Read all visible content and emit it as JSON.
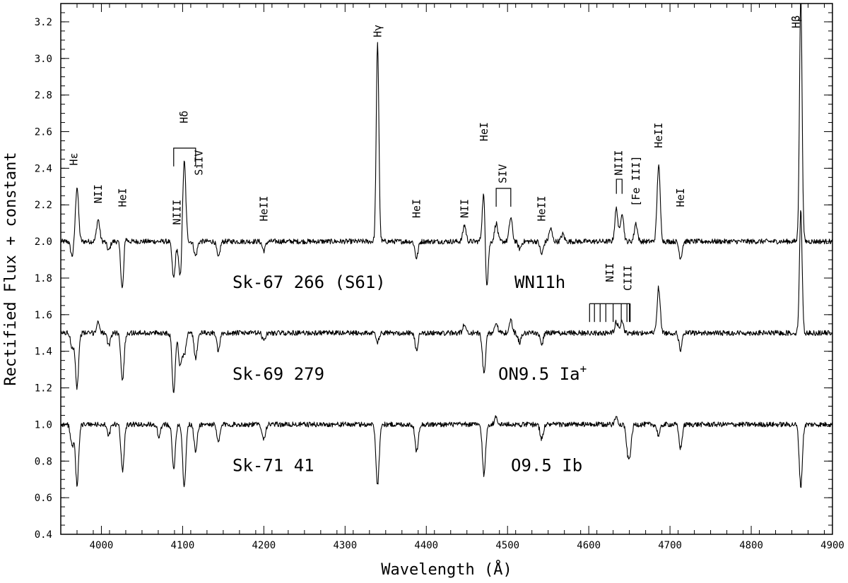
{
  "chart_data": {
    "type": "line",
    "title": "",
    "xlabel": "Wavelength (Å)",
    "ylabel": "Rectified Flux + constant",
    "xlim": [
      3950,
      4900
    ],
    "ylim": [
      0.4,
      3.3
    ],
    "xticks": [
      4000,
      4100,
      4200,
      4300,
      4400,
      4500,
      4600,
      4700,
      4800,
      4900
    ],
    "yticks": [
      0.4,
      0.6,
      0.8,
      1.0,
      1.2,
      1.4,
      1.6,
      1.8,
      2.0,
      2.2,
      2.4,
      2.6,
      2.8,
      3.0,
      3.2
    ],
    "grid": false,
    "series": [
      {
        "name": "Sk-67 266 (S61)",
        "spectral_type": "WN11h",
        "continuum": 2.0,
        "features": [
          {
            "x": 3964,
            "depth": 0.08
          },
          {
            "x": 3970,
            "depth": -0.3
          },
          {
            "x": 3996,
            "depth": -0.12
          },
          {
            "x": 4009,
            "depth": 0.05
          },
          {
            "x": 4026,
            "depth": 0.3
          },
          {
            "x": 4028,
            "depth": -0.08
          },
          {
            "x": 4089,
            "depth": 0.2
          },
          {
            "x": 4097,
            "depth": 0.2
          },
          {
            "x": 4102,
            "depth": -0.44
          },
          {
            "x": 4116,
            "depth": 0.08
          },
          {
            "x": 4144,
            "depth": 0.09
          },
          {
            "x": 4200,
            "depth": 0.05
          },
          {
            "x": 4340,
            "depth": -1.08
          },
          {
            "x": 4388,
            "depth": 0.09
          },
          {
            "x": 4447,
            "depth": -0.09
          },
          {
            "x": 4471,
            "depth": -0.32
          },
          {
            "x": 4474,
            "depth": 0.3
          },
          {
            "x": 4486,
            "depth": -0.1
          },
          {
            "x": 4504,
            "depth": -0.13
          },
          {
            "x": 4515,
            "depth": 0.04
          },
          {
            "x": 4542,
            "depth": 0.07
          },
          {
            "x": 4553,
            "depth": -0.07
          },
          {
            "x": 4568,
            "depth": -0.04
          },
          {
            "x": 4634,
            "depth": -0.18
          },
          {
            "x": 4641,
            "depth": -0.16
          },
          {
            "x": 4658,
            "depth": -0.1
          },
          {
            "x": 4686,
            "depth": -0.42
          },
          {
            "x": 4713,
            "depth": 0.09
          },
          {
            "x": 4861,
            "depth": -1.35
          }
        ]
      },
      {
        "name": "Sk-69 279",
        "spectral_type": "ON9.5 Ia",
        "spectral_type_sup": "+",
        "continuum": 1.5,
        "features": [
          {
            "x": 3964,
            "depth": 0.08
          },
          {
            "x": 3970,
            "depth": 0.3
          },
          {
            "x": 3996,
            "depth": -0.06
          },
          {
            "x": 4009,
            "depth": 0.07
          },
          {
            "x": 4026,
            "depth": 0.26
          },
          {
            "x": 4089,
            "depth": 0.32
          },
          {
            "x": 4097,
            "depth": 0.18
          },
          {
            "x": 4102,
            "depth": 0.12
          },
          {
            "x": 4116,
            "depth": 0.14
          },
          {
            "x": 4144,
            "depth": 0.1
          },
          {
            "x": 4200,
            "depth": 0.04
          },
          {
            "x": 4340,
            "depth": 0.05
          },
          {
            "x": 4388,
            "depth": 0.09
          },
          {
            "x": 4447,
            "depth": -0.05
          },
          {
            "x": 4471,
            "depth": 0.22
          },
          {
            "x": 4486,
            "depth": -0.06
          },
          {
            "x": 4504,
            "depth": -0.07
          },
          {
            "x": 4515,
            "depth": 0.05
          },
          {
            "x": 4542,
            "depth": 0.06
          },
          {
            "x": 4634,
            "depth": -0.06
          },
          {
            "x": 4641,
            "depth": -0.06
          },
          {
            "x": 4686,
            "depth": -0.25
          },
          {
            "x": 4713,
            "depth": 0.09
          },
          {
            "x": 4861,
            "depth": -0.68
          }
        ]
      },
      {
        "name": "Sk-71 41",
        "spectral_type": "O9.5 Ib",
        "continuum": 1.0,
        "features": [
          {
            "x": 3964,
            "depth": 0.12
          },
          {
            "x": 3970,
            "depth": 0.33
          },
          {
            "x": 4009,
            "depth": 0.06
          },
          {
            "x": 4026,
            "depth": 0.25
          },
          {
            "x": 4071,
            "depth": 0.07
          },
          {
            "x": 4089,
            "depth": 0.24
          },
          {
            "x": 4102,
            "depth": 0.34
          },
          {
            "x": 4116,
            "depth": 0.15
          },
          {
            "x": 4144,
            "depth": 0.1
          },
          {
            "x": 4200,
            "depth": 0.08
          },
          {
            "x": 4340,
            "depth": 0.33
          },
          {
            "x": 4388,
            "depth": 0.15
          },
          {
            "x": 4471,
            "depth": 0.28
          },
          {
            "x": 4486,
            "depth": -0.04
          },
          {
            "x": 4542,
            "depth": 0.08
          },
          {
            "x": 4634,
            "depth": -0.04
          },
          {
            "x": 4648,
            "depth": 0.14
          },
          {
            "x": 4651,
            "depth": 0.12
          },
          {
            "x": 4686,
            "depth": 0.06
          },
          {
            "x": 4713,
            "depth": 0.13
          },
          {
            "x": 4861,
            "depth": 0.34
          }
        ]
      }
    ],
    "star_labels": [
      {
        "name": "Sk-67 266 (S61)",
        "type": "WN11h",
        "y": 1.78
      },
      {
        "name": "Sk-69 279",
        "type": "ON9.5 Ia",
        "type_sup": "+",
        "y": 1.28
      },
      {
        "name": "Sk-71 41",
        "type": "O9.5 Ib",
        "y": 0.78
      }
    ],
    "annotations": [
      {
        "text": "Hε",
        "x": 3966,
        "y": 2.45,
        "rotate": true
      },
      {
        "text": "NII",
        "x": 3996,
        "y": 2.26,
        "rotate": true
      },
      {
        "text": "HeI",
        "x": 4026,
        "y": 2.24,
        "rotate": true
      },
      {
        "text": "NIII",
        "x": 4093,
        "y": 2.16,
        "rotate": true
      },
      {
        "text": "Hδ",
        "x": 4102,
        "y": 2.68,
        "rotate": true
      },
      {
        "text": "SiIV",
        "x": 4120,
        "y": 2.43,
        "rotate": true
      },
      {
        "text": "HeII",
        "x": 4200,
        "y": 2.18,
        "rotate": true
      },
      {
        "text": "Hγ",
        "x": 4340,
        "y": 3.15,
        "rotate": true
      },
      {
        "text": "HeI",
        "x": 4388,
        "y": 2.18,
        "rotate": true
      },
      {
        "text": "NII",
        "x": 4447,
        "y": 2.18,
        "rotate": true
      },
      {
        "text": "HeI",
        "x": 4471,
        "y": 2.6,
        "rotate": true
      },
      {
        "text": "SIV",
        "x": 4494,
        "y": 2.37,
        "rotate": true
      },
      {
        "text": "HeII",
        "x": 4542,
        "y": 2.18,
        "rotate": true
      },
      {
        "text": "NIII",
        "x": 4637,
        "y": 2.43,
        "rotate": true
      },
      {
        "text": "[Fe III]",
        "x": 4658,
        "y": 2.33,
        "rotate": true
      },
      {
        "text": "HeII",
        "x": 4686,
        "y": 2.58,
        "rotate": true
      },
      {
        "text": "HeI",
        "x": 4713,
        "y": 2.24,
        "rotate": true
      },
      {
        "text": "NII",
        "x": 4626,
        "y": 1.83,
        "rotate": true
      },
      {
        "text": "CIII",
        "x": 4648,
        "y": 1.8,
        "rotate": true
      },
      {
        "text": "Hβ",
        "x": 4855,
        "y": 3.2,
        "rotate": true
      }
    ],
    "brackets": [
      {
        "x1": 4089,
        "x2": 4116,
        "y_top": 2.51,
        "y_bottom": 2.41
      },
      {
        "x1": 4486,
        "x2": 4504,
        "y_top": 2.29,
        "y_bottom": 2.19
      },
      {
        "x1": 4634,
        "x2": 4641,
        "y_top": 2.34,
        "y_bottom": 2.26
      }
    ],
    "tick_marks": {
      "y_top": 1.66,
      "y_bottom": 1.56,
      "x": [
        4601,
        4607,
        4614,
        4621,
        4630,
        4640,
        4647,
        4650,
        4651
      ]
    }
  }
}
